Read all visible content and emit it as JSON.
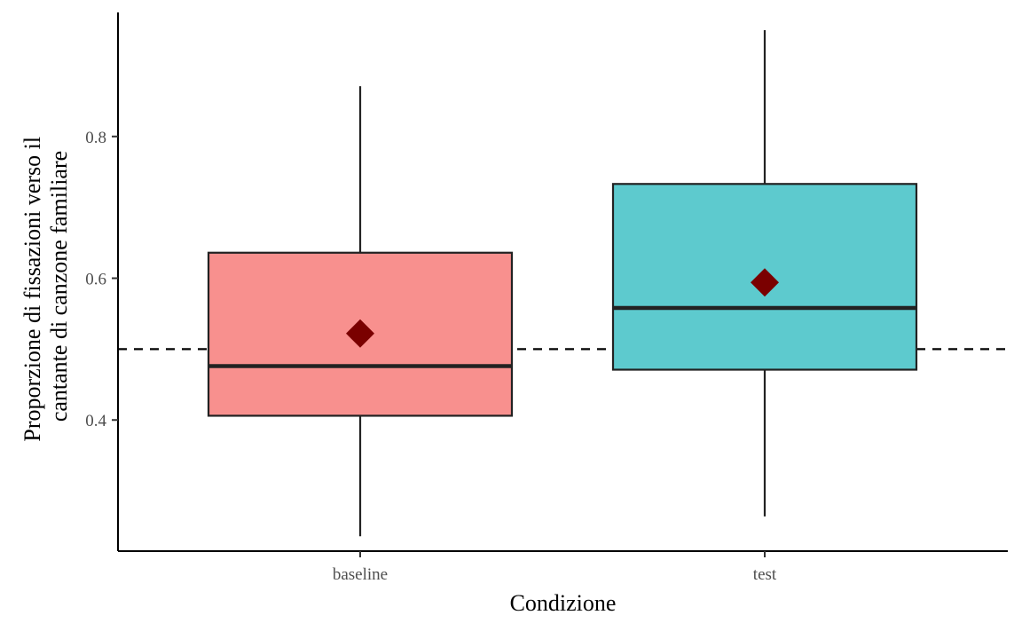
{
  "chart_data": {
    "type": "boxplot",
    "xlabel": "Condizione",
    "ylabel_lines": [
      "Proporzione di fissazioni verso il",
      "cantante di canzone familiare"
    ],
    "categories": [
      "baseline",
      "test"
    ],
    "y_ticks": [
      0.4,
      0.6,
      0.8
    ],
    "y_tick_labels": [
      "0.4",
      "0.6",
      "0.8"
    ],
    "ylim": [
      0.215,
      0.975
    ],
    "reference_line": {
      "y": 0.5,
      "style": "dashed"
    },
    "boxes": [
      {
        "category": "baseline",
        "whisker_low": 0.236,
        "q1": 0.406,
        "median": 0.476,
        "q3": 0.636,
        "whisker_high": 0.871,
        "mean": 0.522,
        "color": "#F8908E"
      },
      {
        "category": "test",
        "whisker_low": 0.264,
        "q1": 0.471,
        "median": 0.558,
        "q3": 0.733,
        "whisker_high": 0.95,
        "mean": 0.594,
        "color": "#5DCACE"
      }
    ],
    "mean_marker_color": "#7A0000",
    "grid": false,
    "legend": "none"
  }
}
